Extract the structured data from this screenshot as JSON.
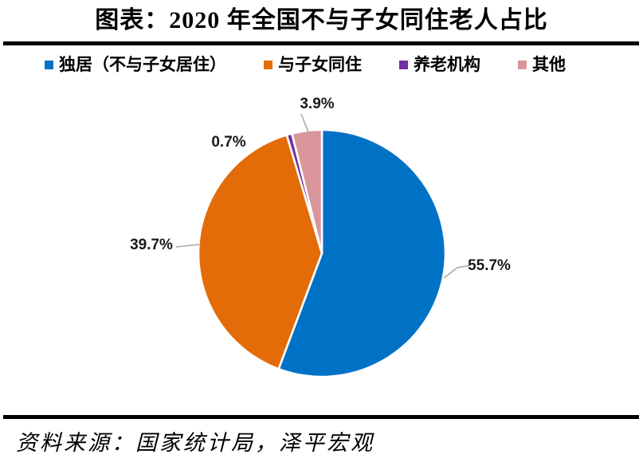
{
  "page": {
    "title": "图表：2020 年全国不与子女同住老人占比",
    "source": "资料来源：国家统计局，泽平宏观"
  },
  "chart_data": {
    "type": "pie",
    "title": "2020 年全国不与子女同住老人占比",
    "unit": "percent",
    "direction": "clockwise",
    "start_angle_deg": 0,
    "legend_position": "top",
    "data_labels": "outside",
    "slices": [
      {
        "label": "独居（不与子女居住）",
        "value": 55.7,
        "color": "#0072C6"
      },
      {
        "label": "与子女同住",
        "value": 39.7,
        "color": "#E36C09"
      },
      {
        "label": "养老机构",
        "value": 0.7,
        "color": "#7030A0"
      },
      {
        "label": "其他",
        "value": 3.9,
        "color": "#D9969A"
      }
    ]
  },
  "colors": {
    "divider": "#000000",
    "leader_line": "#A6A6A6",
    "label_text": "#1A1A1A",
    "background": "#FFFFFF"
  }
}
